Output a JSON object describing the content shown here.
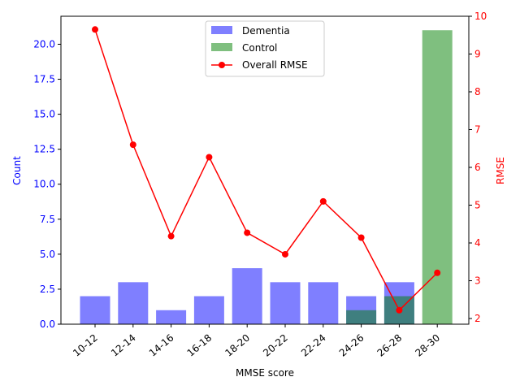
{
  "chart_data": {
    "type": "bar",
    "title": "",
    "xlabel": "MMSE score",
    "ylabel_left": "Count",
    "ylabel_right": "RMSE",
    "categories": [
      "10-12",
      "12-14",
      "14-16",
      "16-18",
      "18-20",
      "20-22",
      "22-24",
      "24-26",
      "26-28",
      "28-30"
    ],
    "ylim_left": [
      0,
      22
    ],
    "yticks_left": [
      "0.0",
      "2.5",
      "5.0",
      "7.5",
      "10.0",
      "12.5",
      "15.0",
      "17.5",
      "20.0"
    ],
    "ylim_right": [
      1.85,
      10
    ],
    "yticks_right": [
      "2",
      "3",
      "4",
      "5",
      "6",
      "7",
      "8",
      "9",
      "10"
    ],
    "series": [
      {
        "name": "Dementia",
        "type": "bar",
        "axis": "left",
        "color": "#0000ff",
        "opacity": 0.5,
        "values": [
          2,
          3,
          1,
          2,
          4,
          3,
          3,
          2,
          3,
          0
        ]
      },
      {
        "name": "Control",
        "type": "bar",
        "axis": "left",
        "color": "#008000",
        "opacity": 0.5,
        "values": [
          0,
          0,
          0,
          0,
          0,
          0,
          0,
          1,
          2,
          21
        ]
      },
      {
        "name": "Overall RMSE",
        "type": "line",
        "axis": "right",
        "color": "#ff0000",
        "marker": "circle",
        "values": [
          9.65,
          6.6,
          4.18,
          6.27,
          4.27,
          3.7,
          5.1,
          4.14,
          2.22,
          3.21
        ]
      }
    ],
    "legend_position": "top-center",
    "left_axis_color": "#0000ff",
    "right_axis_color": "#ff0000"
  }
}
